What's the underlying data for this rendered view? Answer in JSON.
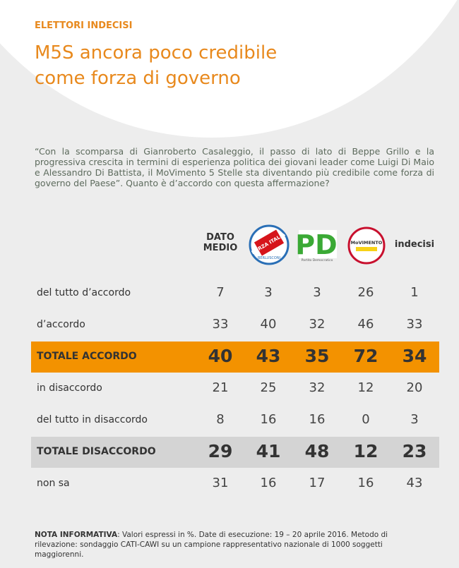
{
  "header": {
    "kicker": "ELETTORI INDECISI",
    "title_lines": [
      "M5S ancora poco credibile",
      "come forza di governo"
    ]
  },
  "question": "“Con la scomparsa di Gianroberto Casaleggio, il passo di lato di Beppe Grillo e la progressiva crescita in termini di esperienza politica dei giovani leader come Luigi Di Maio e Alessandro Di Battista, il MoVimento 5 Stelle sta diventando più credibile come forza di governo del Paese”. Quanto è d’accordo con questa affermazione?",
  "table": {
    "columns": [
      "DATO MEDIO",
      "FORZA ITALIA",
      "PD",
      "MoVIMENTO",
      "indecisi"
    ],
    "logo_texts": {
      "forza_italia_sub": "BERLUSCONI",
      "pd_sub": "Partito Democratico"
    },
    "rows": [
      {
        "label": "del tutto d’accordo",
        "values": [
          7,
          3,
          3,
          26,
          1
        ],
        "style": "plain"
      },
      {
        "label": "d’accordo",
        "values": [
          33,
          40,
          32,
          46,
          33
        ],
        "style": "plain"
      },
      {
        "label": "TOTALE ACCORDO",
        "values": [
          40,
          43,
          35,
          72,
          34
        ],
        "style": "orange"
      },
      {
        "label": "in disaccordo",
        "values": [
          21,
          25,
          32,
          12,
          20
        ],
        "style": "plain"
      },
      {
        "label": "del tutto in disaccordo",
        "values": [
          8,
          16,
          16,
          0,
          3
        ],
        "style": "plain"
      },
      {
        "label": "TOTALE DISACCORDO",
        "values": [
          29,
          41,
          48,
          12,
          23
        ],
        "style": "gray"
      },
      {
        "label": "non sa",
        "values": [
          31,
          16,
          17,
          16,
          43
        ],
        "style": "plain"
      }
    ]
  },
  "note": {
    "lead": "NOTA INFORMATIVA",
    "text": ": Valori espressi in %. Date di esecuzione: 19 – 20 aprile 2016. Metodo di rilevazione: sondaggio CATI-CAWI su un campione rappresentativo nazionale di 1000 soggetti maggiorenni."
  }
}
